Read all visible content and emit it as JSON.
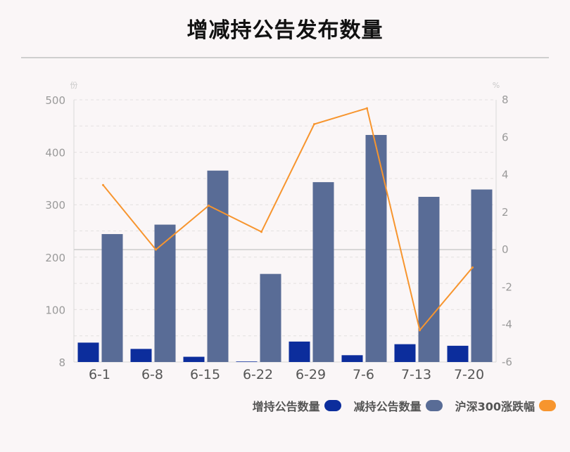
{
  "chart_data": {
    "type": "bar+line",
    "title": "增减持公告发布数量",
    "left_axis_unit": "份",
    "right_axis_unit": "%",
    "categories": [
      "6-1",
      "6-8",
      "6-15",
      "6-22",
      "6-29",
      "7-6",
      "7-13",
      "7-20"
    ],
    "left_ticks": [
      "8",
      "100",
      "200",
      "300",
      "400",
      "500"
    ],
    "left_tick_values": [
      8,
      100,
      200,
      300,
      400,
      500
    ],
    "right_ticks": [
      "8",
      "6",
      "4",
      "2",
      "0",
      "-2",
      "-4",
      "-6"
    ],
    "right_tick_values": [
      8,
      6,
      4,
      2,
      0,
      -2,
      -4,
      -6
    ],
    "ylim_left": [
      0,
      500
    ],
    "ylim_right": [
      -6,
      8
    ],
    "series": [
      {
        "name": "增持公告数量",
        "type": "bar",
        "axis": "left",
        "color": "#0c2d9c",
        "values": [
          37,
          25,
          10,
          1,
          39,
          13,
          34,
          31
        ]
      },
      {
        "name": "减持公告数量",
        "type": "bar",
        "axis": "left",
        "color": "#596c96",
        "values": [
          244,
          262,
          365,
          168,
          343,
          433,
          315,
          329
        ]
      },
      {
        "name": "沪深300涨跌幅",
        "type": "line",
        "axis": "right",
        "color": "#f7952e",
        "values": [
          3.45,
          0.0,
          2.35,
          0.95,
          6.7,
          7.55,
          -4.3,
          -0.95
        ]
      }
    ],
    "grid": true,
    "legend_position": "bottom-right"
  }
}
